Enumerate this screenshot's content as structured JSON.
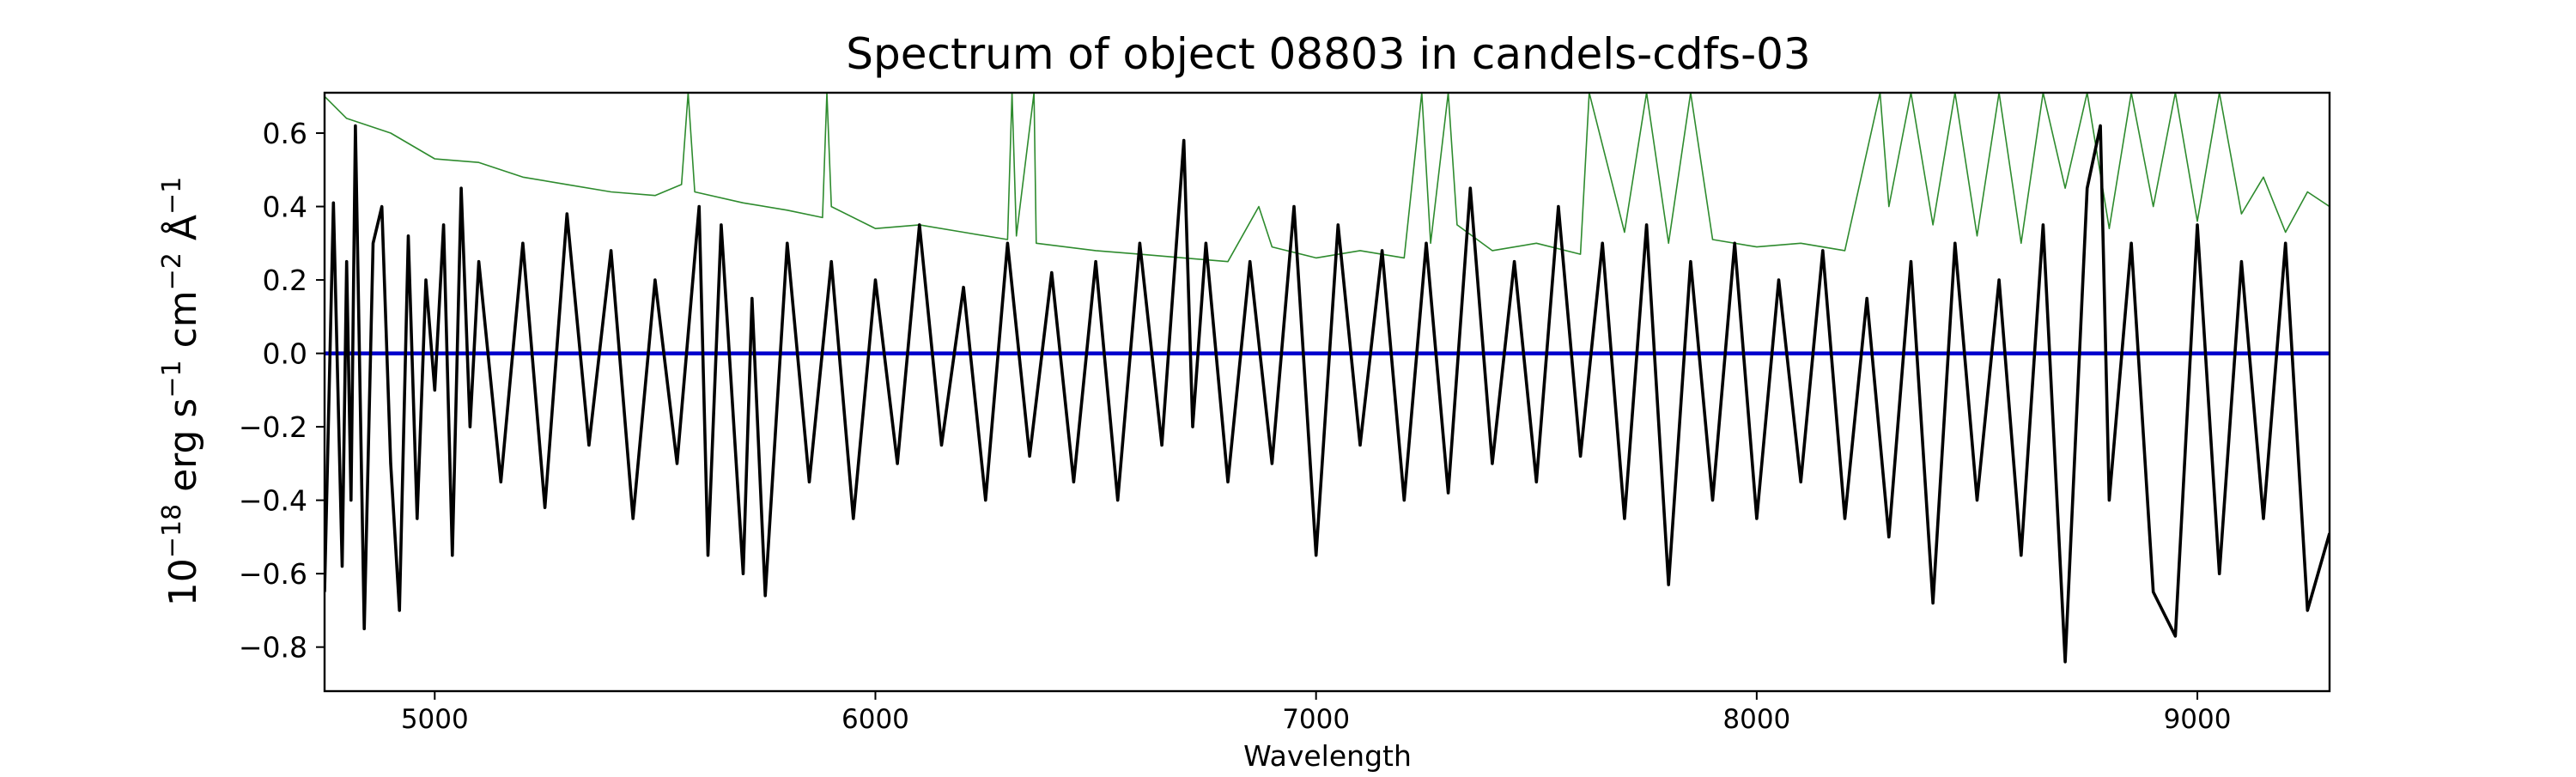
{
  "chart_data": {
    "type": "line",
    "title": "Spectrum of object 08803 in candels-cdfs-03",
    "xlabel": "Wavelength",
    "ylabel": {
      "base": "10",
      "exp1": "−18",
      "mid1": " erg s",
      "exp2": "−1",
      "mid2": " cm",
      "exp3": "−2",
      "mid3": " Å",
      "exp4": "−1"
    },
    "xlim": [
      4750,
      9300
    ],
    "ylim": [
      -0.92,
      0.71
    ],
    "xticks": [
      5000,
      6000,
      7000,
      8000,
      9000
    ],
    "yticks": [
      -0.8,
      -0.6,
      -0.4,
      -0.2,
      0.0,
      0.2,
      0.4,
      0.6
    ],
    "ytick_labels": [
      "−0.8",
      "−0.6",
      "−0.4",
      "−0.2",
      "0.0",
      "0.2",
      "0.4",
      "0.6"
    ],
    "grid": false,
    "series": [
      {
        "key": "contamination",
        "color": "#2e8b2e",
        "x": [
          4750,
          4800,
          4900,
          5000,
          5100,
          5200,
          5300,
          5400,
          5500,
          5560,
          5575,
          5590,
          5700,
          5800,
          5880,
          5890,
          5900,
          6000,
          6100,
          6200,
          6300,
          6310,
          6320,
          6360,
          6365,
          6500,
          6600,
          6700,
          6800,
          6870,
          6900,
          7000,
          7100,
          7200,
          7240,
          7260,
          7300,
          7320,
          7400,
          7500,
          7600,
          7620,
          7700,
          7750,
          7800,
          7850,
          7900,
          8000,
          8100,
          8200,
          8280,
          8300,
          8350,
          8400,
          8450,
          8500,
          8550,
          8600,
          8650,
          8700,
          8750,
          8800,
          8850,
          8900,
          8950,
          9000,
          9050,
          9100,
          9150,
          9200,
          9250,
          9300
        ],
        "y": [
          0.7,
          0.64,
          0.6,
          0.53,
          0.52,
          0.48,
          0.46,
          0.44,
          0.43,
          0.46,
          0.71,
          0.44,
          0.41,
          0.39,
          0.37,
          0.71,
          0.4,
          0.34,
          0.35,
          0.33,
          0.31,
          0.71,
          0.32,
          0.71,
          0.3,
          0.28,
          0.27,
          0.26,
          0.25,
          0.4,
          0.29,
          0.26,
          0.28,
          0.26,
          0.71,
          0.3,
          0.71,
          0.35,
          0.28,
          0.3,
          0.27,
          0.71,
          0.33,
          0.71,
          0.3,
          0.71,
          0.31,
          0.29,
          0.3,
          0.28,
          0.71,
          0.4,
          0.71,
          0.35,
          0.71,
          0.32,
          0.71,
          0.3,
          0.71,
          0.45,
          0.71,
          0.34,
          0.71,
          0.4,
          0.71,
          0.36,
          0.71,
          0.38,
          0.48,
          0.33,
          0.44,
          0.4
        ]
      },
      {
        "key": "model",
        "color": "#0000cc",
        "x": [
          4750,
          9300
        ],
        "y": [
          0.0,
          0.0
        ]
      },
      {
        "key": "spectrum",
        "color": "#000000",
        "x": [
          4750,
          4770,
          4790,
          4800,
          4810,
          4820,
          4840,
          4860,
          4880,
          4900,
          4920,
          4940,
          4960,
          4980,
          5000,
          5020,
          5040,
          5060,
          5080,
          5100,
          5150,
          5200,
          5250,
          5300,
          5350,
          5400,
          5450,
          5500,
          5550,
          5600,
          5620,
          5650,
          5700,
          5720,
          5750,
          5800,
          5850,
          5900,
          5950,
          6000,
          6050,
          6100,
          6150,
          6200,
          6250,
          6300,
          6350,
          6400,
          6450,
          6500,
          6550,
          6600,
          6650,
          6700,
          6720,
          6750,
          6800,
          6850,
          6900,
          6950,
          7000,
          7050,
          7100,
          7150,
          7200,
          7250,
          7300,
          7350,
          7400,
          7450,
          7500,
          7550,
          7600,
          7650,
          7700,
          7750,
          7800,
          7850,
          7900,
          7950,
          8000,
          8050,
          8100,
          8150,
          8200,
          8250,
          8300,
          8350,
          8400,
          8450,
          8500,
          8550,
          8600,
          8650,
          8700,
          8750,
          8780,
          8800,
          8850,
          8900,
          8950,
          9000,
          9050,
          9100,
          9150,
          9200,
          9250,
          9300
        ],
        "y": [
          -0.65,
          0.41,
          -0.58,
          0.25,
          -0.4,
          0.62,
          -0.75,
          0.3,
          0.4,
          -0.3,
          -0.7,
          0.32,
          -0.45,
          0.2,
          -0.1,
          0.35,
          -0.55,
          0.45,
          -0.2,
          0.25,
          -0.35,
          0.3,
          -0.42,
          0.38,
          -0.25,
          0.28,
          -0.45,
          0.2,
          -0.3,
          0.4,
          -0.55,
          0.35,
          -0.6,
          0.15,
          -0.66,
          0.3,
          -0.35,
          0.25,
          -0.45,
          0.2,
          -0.3,
          0.35,
          -0.25,
          0.18,
          -0.4,
          0.3,
          -0.28,
          0.22,
          -0.35,
          0.25,
          -0.4,
          0.3,
          -0.25,
          0.58,
          -0.2,
          0.3,
          -0.35,
          0.25,
          -0.3,
          0.4,
          -0.55,
          0.35,
          -0.25,
          0.28,
          -0.4,
          0.3,
          -0.38,
          0.45,
          -0.3,
          0.25,
          -0.35,
          0.4,
          -0.28,
          0.3,
          -0.45,
          0.35,
          -0.63,
          0.25,
          -0.4,
          0.3,
          -0.45,
          0.2,
          -0.35,
          0.28,
          -0.45,
          0.15,
          -0.5,
          0.25,
          -0.68,
          0.3,
          -0.4,
          0.2,
          -0.55,
          0.35,
          -0.84,
          0.45,
          0.62,
          -0.4,
          0.3,
          -0.65,
          -0.77,
          0.35,
          -0.6,
          0.25,
          -0.45,
          0.3,
          -0.7,
          -0.49
        ]
      }
    ]
  }
}
